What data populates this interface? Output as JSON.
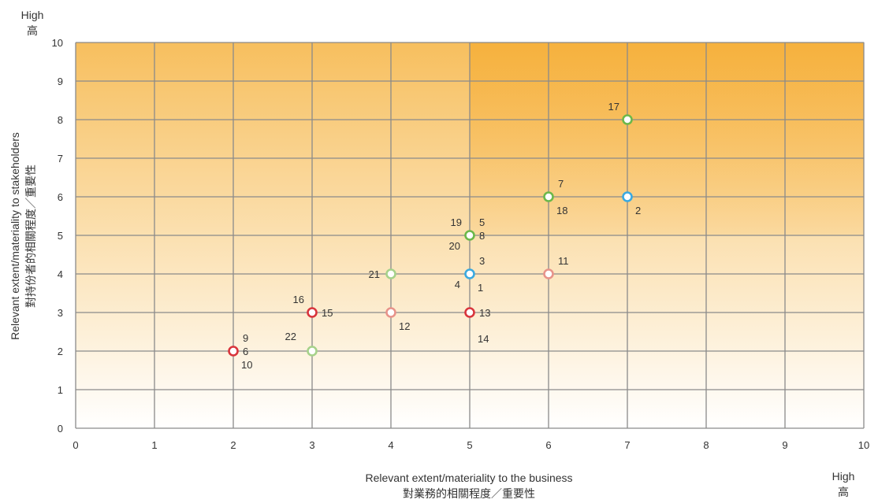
{
  "chart_data": {
    "type": "scatter",
    "xlabel": "Relevant extent/materiality to the business",
    "xlabel_zh": "對業務的相關程度／重要性",
    "ylabel": "Relevant extent/materiality to stakeholders",
    "ylabel_zh": "對持份者的相關程度／重要性",
    "x_high": "High",
    "x_high_zh": "高",
    "y_high": "High",
    "y_high_zh": "高",
    "xlim": [
      0,
      10
    ],
    "ylim": [
      0,
      10
    ],
    "x_ticks": [
      "0",
      "1",
      "2",
      "3",
      "4",
      "5",
      "6",
      "7",
      "8",
      "9",
      "10"
    ],
    "y_ticks": [
      "0",
      "1",
      "2",
      "3",
      "4",
      "5",
      "6",
      "7",
      "8",
      "9",
      "10"
    ],
    "grid": true,
    "highlight_region": {
      "x": [
        5,
        10
      ],
      "y": [
        5,
        10
      ]
    },
    "colors": {
      "red": "#d9353c",
      "pink": "#e8938a",
      "blue": "#3aa9e0",
      "green": "#6cb84a",
      "lightgreen": "#a6d28a",
      "grid": "#8a8a8a",
      "gradient_top": "#f7b84e",
      "gradient_bottom": "#ffffff"
    },
    "points": [
      {
        "x": 2,
        "y": 2,
        "color": "red",
        "labels": [
          {
            "text": "9",
            "pos": "ur"
          },
          {
            "text": "6",
            "pos": "r"
          },
          {
            "text": "10",
            "pos": "lr"
          }
        ]
      },
      {
        "x": 3,
        "y": 3,
        "color": "red",
        "labels": [
          {
            "text": "16",
            "pos": "ul"
          },
          {
            "text": "15",
            "pos": "r"
          },
          {
            "text": "22",
            "pos": "l2"
          }
        ]
      },
      {
        "x": 3,
        "y": 2,
        "color": "lightgreen",
        "labels": []
      },
      {
        "x": 4,
        "y": 4,
        "color": "lightgreen",
        "labels": [
          {
            "text": "21",
            "pos": "l"
          }
        ]
      },
      {
        "x": 4,
        "y": 3,
        "color": "pink",
        "labels": [
          {
            "text": "12",
            "pos": "lr"
          }
        ]
      },
      {
        "x": 5,
        "y": 5,
        "color": "green",
        "labels": [
          {
            "text": "19",
            "pos": "ul"
          },
          {
            "text": "5",
            "pos": "ur"
          },
          {
            "text": "8",
            "pos": "r"
          },
          {
            "text": "20",
            "pos": "ll"
          }
        ]
      },
      {
        "x": 5,
        "y": 4,
        "color": "blue",
        "labels": [
          {
            "text": "3",
            "pos": "ur"
          },
          {
            "text": "4",
            "pos": "ll"
          },
          {
            "text": "1",
            "pos": "lr"
          }
        ]
      },
      {
        "x": 5,
        "y": 3,
        "color": "red",
        "labels": [
          {
            "text": "13",
            "pos": "r"
          },
          {
            "text": "14",
            "pos": "lr2"
          }
        ]
      },
      {
        "x": 6,
        "y": 6,
        "color": "green",
        "labels": [
          {
            "text": "7",
            "pos": "ur"
          },
          {
            "text": "18",
            "pos": "lr"
          }
        ]
      },
      {
        "x": 6,
        "y": 4,
        "color": "pink",
        "labels": [
          {
            "text": "11",
            "pos": "ur"
          }
        ]
      },
      {
        "x": 7,
        "y": 8,
        "color": "green",
        "labels": [
          {
            "text": "17",
            "pos": "ul"
          }
        ]
      },
      {
        "x": 7,
        "y": 6,
        "color": "blue",
        "labels": [
          {
            "text": "2",
            "pos": "lr"
          }
        ]
      }
    ]
  }
}
